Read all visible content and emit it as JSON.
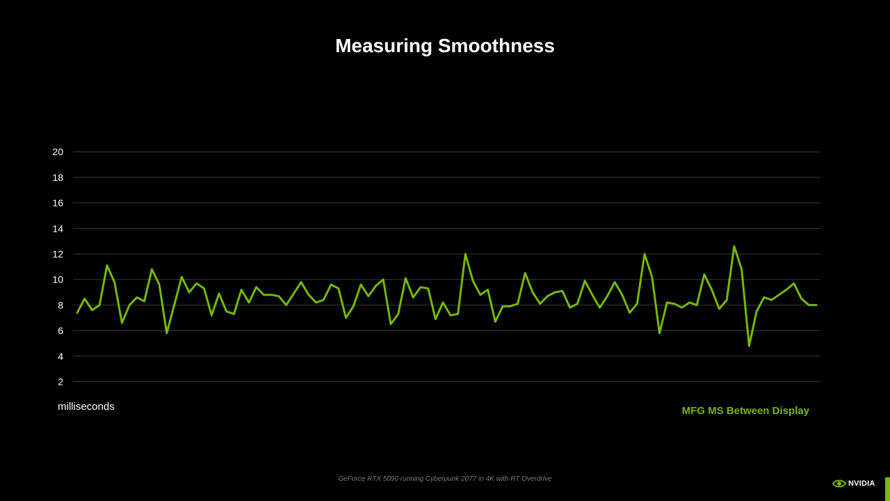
{
  "title": "Measuring Smoothness",
  "caption": "GeForce RTX 5090 running Cyberpunk 2077 in 4K with RT Overdrive",
  "logo": {
    "text": "NVIDIA",
    "icon": "nvidia-eye-logo"
  },
  "colors": {
    "background": "#000000",
    "accent": "#76b900",
    "grid": "#3a3a3a",
    "caption": "#7a7a7a"
  },
  "chart_data": {
    "type": "line",
    "title": "Measuring Smoothness",
    "ylabel": "milliseconds",
    "xlabel": "",
    "ylim": [
      1,
      20
    ],
    "yticks": [
      2,
      4,
      6,
      8,
      10,
      12,
      14,
      16,
      18,
      20
    ],
    "grid": true,
    "legend_position": "bottom-right",
    "x": [
      1,
      2,
      3,
      4,
      5,
      6,
      7,
      8,
      9,
      10,
      11,
      12,
      13,
      14,
      15,
      16,
      17,
      18,
      19,
      20,
      21,
      22,
      23,
      24,
      25,
      26,
      27,
      28,
      29,
      30,
      31,
      32,
      33,
      34,
      35,
      36,
      37,
      38,
      39,
      40,
      41,
      42,
      43,
      44,
      45,
      46,
      47,
      48,
      49,
      50,
      51,
      52,
      53,
      54,
      55,
      56,
      57,
      58,
      59,
      60,
      61,
      62,
      63,
      64,
      65,
      66,
      67,
      68,
      69,
      70,
      71,
      72,
      73,
      74,
      75,
      76,
      77,
      78,
      79,
      80,
      81,
      82,
      83,
      84,
      85,
      86,
      87,
      88,
      89,
      90,
      91,
      92,
      93,
      94,
      95,
      96,
      97,
      98,
      99,
      100
    ],
    "series": [
      {
        "name": "MFG MS Between Display",
        "color": "#76b900",
        "values": [
          7.4,
          8.5,
          7.6,
          8.0,
          11.1,
          9.8,
          6.6,
          8.0,
          8.6,
          8.3,
          10.8,
          9.6,
          5.8,
          8.0,
          10.2,
          9.0,
          9.7,
          9.3,
          7.2,
          8.9,
          7.5,
          7.3,
          9.2,
          8.2,
          9.4,
          8.8,
          8.8,
          8.7,
          8.0,
          8.9,
          9.8,
          8.8,
          8.2,
          8.4,
          9.6,
          9.3,
          7.0,
          7.9,
          9.6,
          8.7,
          9.5,
          10.0,
          6.5,
          7.3,
          10.1,
          8.6,
          9.4,
          9.3,
          6.9,
          8.2,
          7.2,
          7.3,
          12.0,
          9.9,
          8.8,
          9.2,
          6.7,
          7.9,
          7.9,
          8.1,
          10.5,
          9.0,
          8.1,
          8.7,
          9.0,
          9.1,
          7.8,
          8.1,
          9.9,
          8.8,
          7.8,
          8.7,
          9.8,
          8.8,
          7.4,
          8.1,
          12.0,
          10.2,
          5.8,
          8.2,
          8.1,
          7.8,
          8.2,
          8.0,
          10.4,
          9.2,
          7.7,
          8.4,
          12.6,
          10.8,
          4.8,
          7.5,
          8.6,
          8.4,
          8.8,
          9.2,
          9.7,
          8.5,
          8.0,
          8.0
        ]
      }
    ]
  }
}
